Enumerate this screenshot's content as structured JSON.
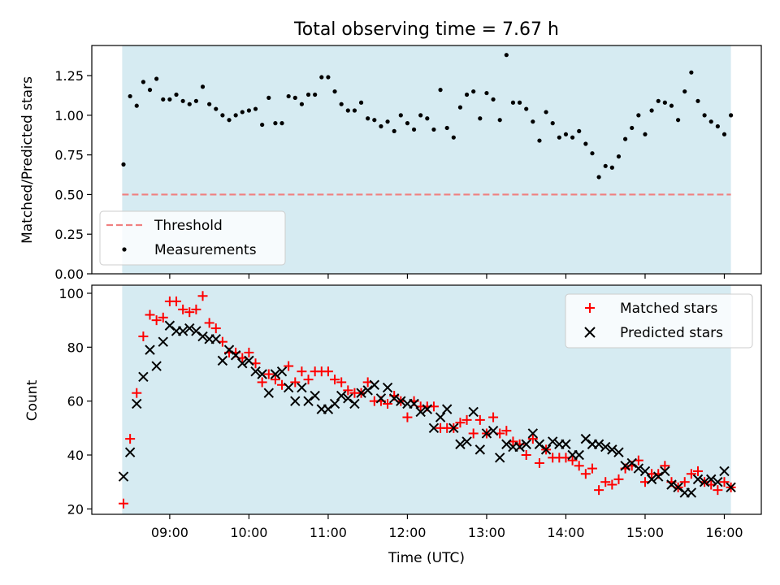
{
  "figure": {
    "title": "Total observing time = 7.67 h",
    "observing_window": {
      "start": "08:24",
      "end": "16:05",
      "color": "#add8e6"
    }
  },
  "chart_data": [
    {
      "type": "scatter",
      "title": "Total observing time = 7.67 h",
      "xlabel": "",
      "ylabel": "Matched/Predicted stars",
      "xlim": [
        "08:01",
        "16:28"
      ],
      "ylim": [
        0,
        1.44
      ],
      "yticks": [
        "0.00",
        "0.25",
        "0.50",
        "0.75",
        "1.00",
        "1.25"
      ],
      "threshold": {
        "name": "Threshold",
        "value": 0.5,
        "color": "#f08080"
      },
      "legend": {
        "position": "lower-left",
        "entries": [
          "Threshold",
          "Measurements"
        ]
      },
      "series": [
        {
          "name": "Measurements",
          "color": "#000000",
          "marker": "dot",
          "x": [
            "08:25",
            "08:30",
            "08:35",
            "08:40",
            "08:45",
            "08:50",
            "08:55",
            "09:00",
            "09:05",
            "09:10",
            "09:15",
            "09:20",
            "09:25",
            "09:30",
            "09:35",
            "09:40",
            "09:45",
            "09:50",
            "09:55",
            "10:00",
            "10:05",
            "10:10",
            "10:15",
            "10:20",
            "10:25",
            "10:30",
            "10:35",
            "10:40",
            "10:45",
            "10:50",
            "10:55",
            "11:00",
            "11:05",
            "11:10",
            "11:15",
            "11:20",
            "11:25",
            "11:30",
            "11:35",
            "11:40",
            "11:45",
            "11:50",
            "11:55",
            "12:00",
            "12:05",
            "12:10",
            "12:15",
            "12:20",
            "12:25",
            "12:30",
            "12:35",
            "12:40",
            "12:45",
            "12:50",
            "12:55",
            "13:00",
            "13:05",
            "13:10",
            "13:15",
            "13:20",
            "13:25",
            "13:30",
            "13:35",
            "13:40",
            "13:45",
            "13:50",
            "13:55",
            "14:00",
            "14:05",
            "14:10",
            "14:15",
            "14:20",
            "14:25",
            "14:30",
            "14:35",
            "14:40",
            "14:45",
            "14:50",
            "14:55",
            "15:00",
            "15:05",
            "15:10",
            "15:15",
            "15:20",
            "15:25",
            "15:30",
            "15:35",
            "15:40",
            "15:45",
            "15:50",
            "15:55",
            "16:00",
            "16:05"
          ],
          "y": [
            0.69,
            1.12,
            1.06,
            1.21,
            1.16,
            1.23,
            1.1,
            1.1,
            1.13,
            1.09,
            1.07,
            1.09,
            1.18,
            1.07,
            1.04,
            1.0,
            0.97,
            1.0,
            1.02,
            1.03,
            1.04,
            0.94,
            1.11,
            0.95,
            0.95,
            1.12,
            1.11,
            1.07,
            1.13,
            1.13,
            1.24,
            1.24,
            1.15,
            1.07,
            1.03,
            1.03,
            1.08,
            0.98,
            0.97,
            0.93,
            0.96,
            0.9,
            1.0,
            0.95,
            0.91,
            1.0,
            0.98,
            0.91,
            1.16,
            0.92,
            0.86,
            1.05,
            1.13,
            1.15,
            0.98,
            1.14,
            1.1,
            0.97,
            1.38,
            1.08,
            1.08,
            1.04,
            0.96,
            0.84,
            1.02,
            0.95,
            0.86,
            0.88,
            0.86,
            0.9,
            0.82,
            0.76,
            0.61,
            0.68,
            0.67,
            0.74,
            0.85,
            0.92,
            1.0,
            0.88,
            1.03,
            1.09,
            1.08,
            1.06,
            0.97,
            1.15,
            1.27,
            1.09,
            1.0,
            0.96,
            0.93,
            0.88,
            1.0
          ]
        }
      ]
    },
    {
      "type": "scatter",
      "title": "",
      "xlabel": "Time (UTC)",
      "ylabel": "Count",
      "xlim": [
        "08:01",
        "16:28"
      ],
      "ylim": [
        18,
        103
      ],
      "yticks": [
        "20",
        "40",
        "60",
        "80",
        "100"
      ],
      "xticks": [
        "09:00",
        "10:00",
        "11:00",
        "12:00",
        "13:00",
        "14:00",
        "15:00",
        "16:00"
      ],
      "legend": {
        "position": "top-right",
        "entries": [
          "Matched stars",
          "Predicted stars"
        ]
      },
      "series": [
        {
          "name": "Matched stars",
          "color": "#ff0000",
          "marker": "plus",
          "x": [
            "08:25",
            "08:30",
            "08:35",
            "08:40",
            "08:45",
            "08:50",
            "08:55",
            "09:00",
            "09:05",
            "09:10",
            "09:15",
            "09:20",
            "09:25",
            "09:30",
            "09:35",
            "09:40",
            "09:45",
            "09:50",
            "09:55",
            "10:00",
            "10:05",
            "10:10",
            "10:15",
            "10:20",
            "10:25",
            "10:30",
            "10:35",
            "10:40",
            "10:45",
            "10:50",
            "10:55",
            "11:00",
            "11:05",
            "11:10",
            "11:15",
            "11:20",
            "11:25",
            "11:30",
            "11:35",
            "11:40",
            "11:45",
            "11:50",
            "11:55",
            "12:00",
            "12:05",
            "12:10",
            "12:15",
            "12:20",
            "12:25",
            "12:30",
            "12:35",
            "12:40",
            "12:45",
            "12:50",
            "12:55",
            "13:00",
            "13:05",
            "13:10",
            "13:15",
            "13:20",
            "13:25",
            "13:30",
            "13:35",
            "13:40",
            "13:45",
            "13:50",
            "13:55",
            "14:00",
            "14:05",
            "14:10",
            "14:15",
            "14:20",
            "14:25",
            "14:30",
            "14:35",
            "14:40",
            "14:45",
            "14:50",
            "14:55",
            "15:00",
            "15:05",
            "15:10",
            "15:15",
            "15:20",
            "15:25",
            "15:30",
            "15:35",
            "15:40",
            "15:45",
            "15:50",
            "15:55",
            "16:00",
            "16:05"
          ],
          "y": [
            22,
            46,
            63,
            84,
            92,
            90,
            91,
            97,
            97,
            94,
            93,
            94,
            99,
            89,
            87,
            82,
            78,
            78,
            76,
            78,
            74,
            67,
            70,
            68,
            66,
            73,
            67,
            71,
            68,
            71,
            71,
            71,
            68,
            67,
            64,
            63,
            63,
            67,
            60,
            60,
            59,
            62,
            60,
            54,
            60,
            58,
            58,
            58,
            50,
            50,
            50,
            52,
            53,
            48,
            53,
            48,
            54,
            48,
            49,
            45,
            44,
            40,
            46,
            37,
            42,
            39,
            39,
            39,
            38,
            36,
            33,
            35,
            27,
            30,
            29,
            31,
            35,
            36,
            38,
            30,
            33,
            33,
            36,
            30,
            28,
            30,
            33,
            34,
            30,
            29,
            27,
            30,
            28
          ]
        },
        {
          "name": "Predicted stars",
          "color": "#000000",
          "marker": "x",
          "x": [
            "08:25",
            "08:30",
            "08:35",
            "08:40",
            "08:45",
            "08:50",
            "08:55",
            "09:00",
            "09:05",
            "09:10",
            "09:15",
            "09:20",
            "09:25",
            "09:30",
            "09:35",
            "09:40",
            "09:45",
            "09:50",
            "09:55",
            "10:00",
            "10:05",
            "10:10",
            "10:15",
            "10:20",
            "10:25",
            "10:30",
            "10:35",
            "10:40",
            "10:45",
            "10:50",
            "10:55",
            "11:00",
            "11:05",
            "11:10",
            "11:15",
            "11:20",
            "11:25",
            "11:30",
            "11:35",
            "11:40",
            "11:45",
            "11:50",
            "11:55",
            "12:00",
            "12:05",
            "12:10",
            "12:15",
            "12:20",
            "12:25",
            "12:30",
            "12:35",
            "12:40",
            "12:45",
            "12:50",
            "12:55",
            "13:00",
            "13:05",
            "13:10",
            "13:15",
            "13:20",
            "13:25",
            "13:30",
            "13:35",
            "13:40",
            "13:45",
            "13:50",
            "13:55",
            "14:00",
            "14:05",
            "14:10",
            "14:15",
            "14:20",
            "14:25",
            "14:30",
            "14:35",
            "14:40",
            "14:45",
            "14:50",
            "14:55",
            "15:00",
            "15:05",
            "15:10",
            "15:15",
            "15:20",
            "15:25",
            "15:30",
            "15:35",
            "15:40",
            "15:45",
            "15:50",
            "15:55",
            "16:00",
            "16:05"
          ],
          "y": [
            32,
            41,
            59,
            69,
            79,
            73,
            82,
            88,
            86,
            86,
            87,
            86,
            84,
            83,
            83,
            75,
            79,
            77,
            74,
            75,
            71,
            70,
            63,
            70,
            71,
            65,
            60,
            65,
            60,
            62,
            57,
            57,
            59,
            62,
            61,
            59,
            63,
            64,
            66,
            61,
            65,
            61,
            60,
            59,
            59,
            56,
            57,
            50,
            54,
            57,
            50,
            44,
            45,
            56,
            42,
            48,
            49,
            39,
            44,
            43,
            43,
            44,
            48,
            44,
            42,
            45,
            44,
            44,
            40,
            40,
            46,
            44,
            44,
            43,
            42,
            41,
            36,
            37,
            35,
            34,
            31,
            32,
            34,
            29,
            28,
            26,
            26,
            31,
            30,
            31,
            30,
            34,
            28
          ]
        }
      ]
    }
  ]
}
